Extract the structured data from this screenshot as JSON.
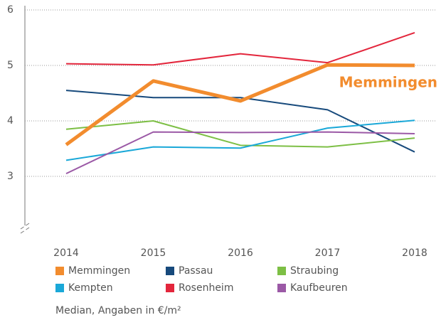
{
  "chart_data": {
    "type": "line",
    "categories": [
      "2014",
      "2015",
      "2016",
      "2017",
      "2018"
    ],
    "series": [
      {
        "name": "Memmingen",
        "color": "#f28c2e",
        "values": [
          3.57,
          4.72,
          4.36,
          5.01,
          5.0
        ]
      },
      {
        "name": "Passau",
        "color": "#174a7c",
        "values": [
          4.55,
          4.42,
          4.42,
          4.2,
          3.44
        ]
      },
      {
        "name": "Straubing",
        "color": "#7dbf45",
        "values": [
          3.85,
          4.0,
          3.56,
          3.53,
          3.69
        ]
      },
      {
        "name": "Kempten",
        "color": "#1aa8d8",
        "values": [
          3.29,
          3.53,
          3.51,
          3.87,
          4.01
        ]
      },
      {
        "name": "Rosenheim",
        "color": "#e3263c",
        "values": [
          5.03,
          5.01,
          5.21,
          5.05,
          5.59
        ]
      },
      {
        "name": "Kaufbeuren",
        "color": "#9b59a6",
        "values": [
          3.05,
          3.8,
          3.79,
          3.8,
          3.77
        ]
      }
    ],
    "annotation": "Memmingen",
    "caption": "Median, Angaben in €/m²",
    "ylim": [
      2,
      6
    ],
    "yticks": [
      3,
      4,
      5,
      6
    ],
    "grid": true
  }
}
